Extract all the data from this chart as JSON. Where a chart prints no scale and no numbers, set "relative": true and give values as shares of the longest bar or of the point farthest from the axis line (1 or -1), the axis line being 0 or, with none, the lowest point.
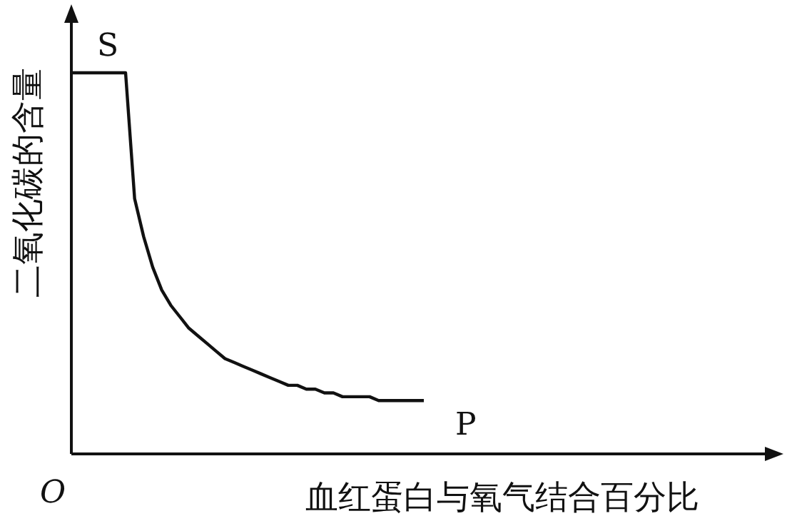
{
  "chart_data": {
    "type": "line",
    "relative": true,
    "xlabel": "血红蛋白与氧气结合百分比",
    "ylabel": "二氧化碳的含量",
    "color": "#111111",
    "marker": "none",
    "line_style": "solid",
    "annotations": [
      "S",
      "P",
      "O"
    ],
    "categories": [
      null,
      null,
      null,
      null,
      null,
      null,
      null,
      null,
      null,
      null,
      null,
      null,
      null,
      null,
      null,
      null,
      null,
      null,
      null,
      null,
      null,
      null,
      null,
      null,
      null,
      null,
      null,
      null,
      null,
      null,
      null,
      null,
      null,
      null,
      null,
      null,
      null,
      null,
      null,
      null
    ],
    "values": [
      1,
      1,
      1,
      1,
      1,
      1,
      1,
      0.67,
      0.57,
      0.49,
      0.43,
      0.39,
      0.36,
      0.33,
      0.31,
      0.29,
      0.27,
      0.25,
      0.24,
      0.23,
      0.22,
      0.21,
      0.2,
      0.19,
      0.18,
      0.18,
      0.17,
      0.17,
      0.16,
      0.16,
      0.15,
      0.15,
      0.15,
      0.15,
      0.14,
      0.14,
      0.14,
      0.14,
      0.14,
      0.14
    ]
  }
}
